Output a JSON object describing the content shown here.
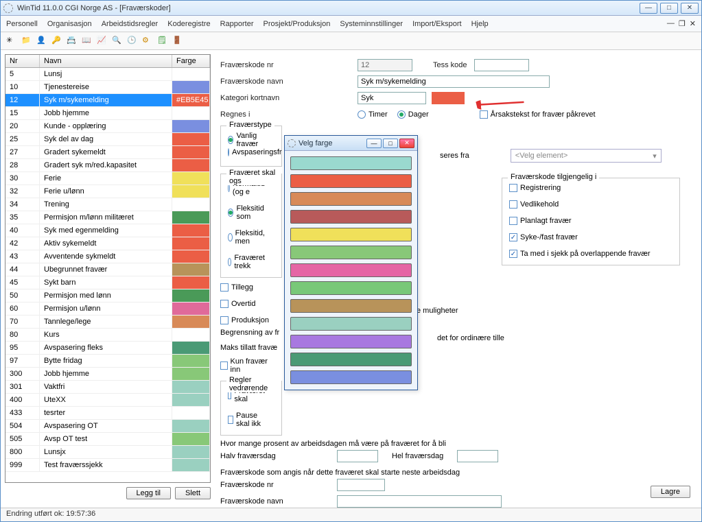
{
  "window": {
    "title": "WinTid 11.0.0 CGI Norge AS - [Fraværskoder]",
    "title_bg_from": "#eaf3fc",
    "title_bg_to": "#d6e8fa",
    "border_color": "#5a8fc8"
  },
  "menu": [
    "Personell",
    "Organisasjon",
    "Arbeidstidsregler",
    "Koderegistre",
    "Rapporter",
    "Prosjekt/Produksjon",
    "Systeminnstillinger",
    "Import/Eksport",
    "Hjelp"
  ],
  "toolbar_icons": [
    "spinner",
    "folder",
    "person",
    "key",
    "cards",
    "chart",
    "wrench",
    "clock",
    "gear",
    "notes",
    "door"
  ],
  "grid": {
    "headers": {
      "nr": "Nr",
      "navn": "Navn",
      "farge": "Farge"
    },
    "selected_index": 2,
    "selected_farge_text": "#EB5E45",
    "rows": [
      {
        "nr": "5",
        "navn": "Lunsj",
        "farge": "#ffffff"
      },
      {
        "nr": "10",
        "navn": "Tjenestereise",
        "farge": "#7a8fe0"
      },
      {
        "nr": "12",
        "navn": "Syk m/sykemelding",
        "farge": "#eb5e45"
      },
      {
        "nr": "15",
        "navn": "Jobb hjemme",
        "farge": "#ffffff"
      },
      {
        "nr": "20",
        "navn": "Kunde - opplæring",
        "farge": "#7a8fe0"
      },
      {
        "nr": "25",
        "navn": "Syk del av dag",
        "farge": "#eb5e45"
      },
      {
        "nr": "27",
        "navn": "Gradert sykemeldt",
        "farge": "#eb5e45"
      },
      {
        "nr": "28",
        "navn": "Gradert syk m/red.kapasitet",
        "farge": "#eb5e45"
      },
      {
        "nr": "30",
        "navn": "Ferie",
        "farge": "#f0e05a"
      },
      {
        "nr": "32",
        "navn": "Ferie u/lønn",
        "farge": "#f0e05a"
      },
      {
        "nr": "34",
        "navn": "Trening",
        "farge": "#ffffff"
      },
      {
        "nr": "35",
        "navn": "Permisjon m/lønn militæret",
        "farge": "#4a9a58"
      },
      {
        "nr": "40",
        "navn": "Syk med egenmelding",
        "farge": "#eb5e45"
      },
      {
        "nr": "42",
        "navn": "Aktiv sykemeldt",
        "farge": "#eb5e45"
      },
      {
        "nr": "43",
        "navn": "Avventende sykmeldt",
        "farge": "#eb5e45"
      },
      {
        "nr": "44",
        "navn": "Ubegrunnet fravær",
        "farge": "#b8935a"
      },
      {
        "nr": "45",
        "navn": "Sykt barn",
        "farge": "#eb5e45"
      },
      {
        "nr": "50",
        "navn": "Permisjon med lønn",
        "farge": "#4a9a58"
      },
      {
        "nr": "60",
        "navn": "Permisjon u/lønn",
        "farge": "#e06a9a"
      },
      {
        "nr": "70",
        "navn": "Tannlege/lege",
        "farge": "#d88a58"
      },
      {
        "nr": "80",
        "navn": "Kurs",
        "farge": "#ffffff"
      },
      {
        "nr": "95",
        "navn": "Avspasering fleks",
        "farge": "#4a9a75"
      },
      {
        "nr": "97",
        "navn": "Bytte fridag",
        "farge": "#88c878"
      },
      {
        "nr": "300",
        "navn": "Jobb hjemme",
        "farge": "#88c878"
      },
      {
        "nr": "301",
        "navn": "Vaktfri",
        "farge": "#9ad0c0"
      },
      {
        "nr": "400",
        "navn": "UteXX",
        "farge": "#9ad0c0"
      },
      {
        "nr": "433",
        "navn": "tesrter",
        "farge": "#ffffff"
      },
      {
        "nr": "504",
        "navn": "Avspasering OT",
        "farge": "#9ad0c0"
      },
      {
        "nr": "505",
        "navn": "Avsp OT test",
        "farge": "#88c878"
      },
      {
        "nr": "800",
        "navn": "Lunsjx",
        "farge": "#9ad0c0"
      },
      {
        "nr": "999",
        "navn": "Test fraværssjekk",
        "farge": "#9ad0c0"
      }
    ]
  },
  "left_buttons": {
    "add": "Legg til",
    "del": "Slett"
  },
  "form": {
    "kode_nr_label": "Fraværskode nr",
    "kode_nr_value": "12",
    "tess_label": "Tess kode",
    "tess_value": "",
    "kode_navn_label": "Fraværskode navn",
    "kode_navn_value": "Syk m/sykemelding",
    "kat_label": "Kategori kortnavn",
    "kat_value": "Syk",
    "kat_color": "#eb5e45",
    "regnes_label": "Regnes i",
    "regnes_timer": "Timer",
    "regnes_dager": "Dager",
    "regnes_selected": "dager",
    "arsak_label": "Årsakstekst for fravær påkrevet",
    "fravaerstype_title": "Fraværstype",
    "ft_vanlig": "Vanlig fravær",
    "ft_avsp": "Avspaseringsfr",
    "ft_selected": "vanlig",
    "seres_label": "seres fra",
    "select_placeholder": "<Velg element>",
    "skal_title": "Fraværet skal ogs",
    "skal_normal": "Normaltid (og e",
    "skal_fleks_som": "Fleksitid som",
    "skal_fleks_men": "Fleksitid, men",
    "skal_trekk": "Fraværet trekk",
    "skal_selected": "fleks_som",
    "tillegg": "Tillegg",
    "overtid": "Overtid",
    "produksjon": "Produksjon",
    "begrens_label": "Begrensning av fr",
    "maks_label": "Maks tillatt fravæ",
    "kun_label": "Kun fravær inn",
    "regler_title": "Regler vedrørende",
    "reg_skal": "Fraværet skal",
    "reg_pause": "Pause skal ikk",
    "reg_mul": "e muligheter",
    "ord_label": "det for ordinære tille",
    "tilg_title": "Fraværskode tilgjengelig i",
    "tilg_reg": "Registrering",
    "tilg_ved": "Vedlikehold",
    "tilg_plan": "Planlagt fravær",
    "tilg_syke": "Syke-/fast fravær",
    "tilg_overlap": "Ta med i sjekk på overlappende fravær",
    "prosent_label": "Hvor mange prosent av arbeidsdagen må være på fraværet for å bli",
    "halv_label": "Halv fraværsdag",
    "hel_label": "Hel fraværsdag",
    "neste_label": "Fraværskode som angis når dette fraværet skal starte neste arbeidsdag",
    "neste_nr_label": "Fraværskode nr",
    "neste_navn_label": "Fraværskode navn",
    "save": "Lagre"
  },
  "color_dialog": {
    "title": "Velg farge",
    "colors": [
      "#9ad9cf",
      "#eb5e45",
      "#d88a58",
      "#b85a5a",
      "#f0e05a",
      "#88c878",
      "#e565a5",
      "#78c878",
      "#b8935a",
      "#9ad0c0",
      "#a878e0",
      "#4a9a75",
      "#7a8fe0"
    ]
  },
  "statusbar": "Endring utført ok: 19:57:36",
  "arrow_color": "#e03030"
}
